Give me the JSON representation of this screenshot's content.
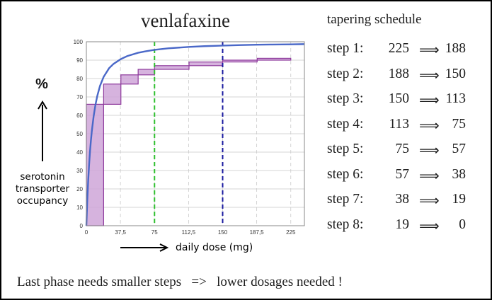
{
  "chart_data": {
    "type": "line",
    "title": "venlafaxine",
    "ylabel_symbol": "%",
    "ylabel": "serotonin transporter occupancy",
    "xlabel": "daily dose (mg)",
    "xlim": [
      0,
      240
    ],
    "ylim": [
      0,
      100
    ],
    "x_ticks": [
      0,
      37.5,
      75,
      112.5,
      150,
      187.5,
      225
    ],
    "x_tick_labels": [
      "0",
      "37,5",
      "75",
      "112,5",
      "150",
      "187,5",
      "225"
    ],
    "y_ticks": [
      0,
      10,
      20,
      30,
      40,
      50,
      60,
      70,
      80,
      90,
      100
    ],
    "y_tick_labels": [
      "0",
      "10",
      "20",
      "30",
      "40",
      "50",
      "60",
      "70",
      "80",
      "90",
      "100"
    ],
    "grid": true,
    "curve": {
      "x": [
        0,
        1,
        2,
        3,
        4,
        5,
        6,
        8,
        10,
        12,
        15,
        19,
        25,
        30,
        38,
        45,
        57,
        65,
        75,
        90,
        113,
        130,
        150,
        170,
        188,
        205,
        225,
        240
      ],
      "y": [
        0,
        13.6,
        24.4,
        33.1,
        40.3,
        46.3,
        51.4,
        59.5,
        65.7,
        70.5,
        76.0,
        80.9,
        85.6,
        88.0,
        90.6,
        92.2,
        94.0,
        94.8,
        95.6,
        96.4,
        97.2,
        97.6,
        97.9,
        98.2,
        98.4,
        98.5,
        98.6,
        98.7
      ]
    },
    "steps": [
      {
        "x0": 0,
        "x1": 19,
        "y0": 0,
        "y1": 66
      },
      {
        "x0": 19,
        "x1": 38,
        "y0": 66,
        "y1": 77
      },
      {
        "x0": 38,
        "x1": 57,
        "y0": 77,
        "y1": 82
      },
      {
        "x0": 57,
        "x1": 75,
        "y0": 82,
        "y1": 85
      },
      {
        "x0": 75,
        "x1": 113,
        "y0": 85,
        "y1": 87
      },
      {
        "x0": 113,
        "x1": 150,
        "y0": 87,
        "y1": 89
      },
      {
        "x0": 150,
        "x1": 188,
        "y0": 89,
        "y1": 90
      },
      {
        "x0": 188,
        "x1": 225,
        "y0": 90,
        "y1": 91
      }
    ],
    "reference_lines": [
      {
        "x": 75,
        "color": "#2fc02f",
        "style": "dashed"
      },
      {
        "x": 150,
        "color": "#1a1aa0",
        "style": "dashed"
      }
    ],
    "colors": {
      "curve": "#4a68c8",
      "step_fill": "#cfa6d8",
      "step_stroke": "#8e3a9c",
      "grid": "#c9c9c9"
    }
  },
  "schedule": {
    "title": "tapering schedule",
    "arrow": "⟹",
    "steps": [
      {
        "label": "step 1:",
        "from": "225",
        "to": "188"
      },
      {
        "label": "step 2:",
        "from": "188",
        "to": "150"
      },
      {
        "label": "step 3:",
        "from": "150",
        "to": "113"
      },
      {
        "label": "step 4:",
        "from": "113",
        "to": "75"
      },
      {
        "label": "step 5:",
        "from": "75",
        "to": "57"
      },
      {
        "label": "step 6:",
        "from": "57",
        "to": "38"
      },
      {
        "label": "step 7:",
        "from": "38",
        "to": "19"
      },
      {
        "label": "step 8:",
        "from": "19",
        "to": "0"
      }
    ]
  },
  "conclusion": "Last phase needs smaller steps   =>   lower dosages needed !"
}
